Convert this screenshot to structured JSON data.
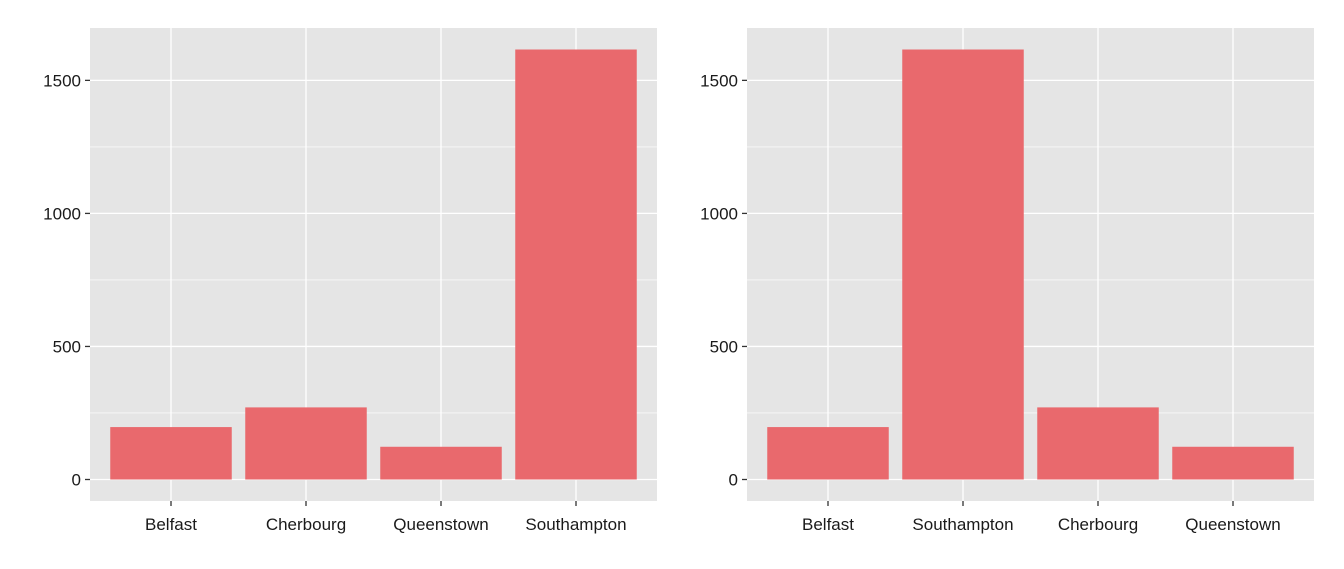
{
  "chart_data": [
    {
      "type": "bar",
      "categories": [
        "Belfast",
        "Cherbourg",
        "Queenstown",
        "Southampton"
      ],
      "values": [
        197,
        271,
        123,
        1616
      ],
      "y_ticks": [
        "0",
        "500",
        "1000",
        "1500"
      ],
      "ylim": [
        0,
        1616
      ],
      "grid": true,
      "bar_color": "#E9696D",
      "panel_background": "#E5E5E5",
      "title": "",
      "xlabel": "",
      "ylabel": ""
    },
    {
      "type": "bar",
      "categories": [
        "Belfast",
        "Southampton",
        "Cherbourg",
        "Queenstown"
      ],
      "values": [
        197,
        1616,
        271,
        123
      ],
      "y_ticks": [
        "0",
        "500",
        "1000",
        "1500"
      ],
      "ylim": [
        0,
        1616
      ],
      "grid": true,
      "bar_color": "#E9696D",
      "panel_background": "#E5E5E5",
      "title": "",
      "xlabel": "",
      "ylabel": ""
    }
  ]
}
